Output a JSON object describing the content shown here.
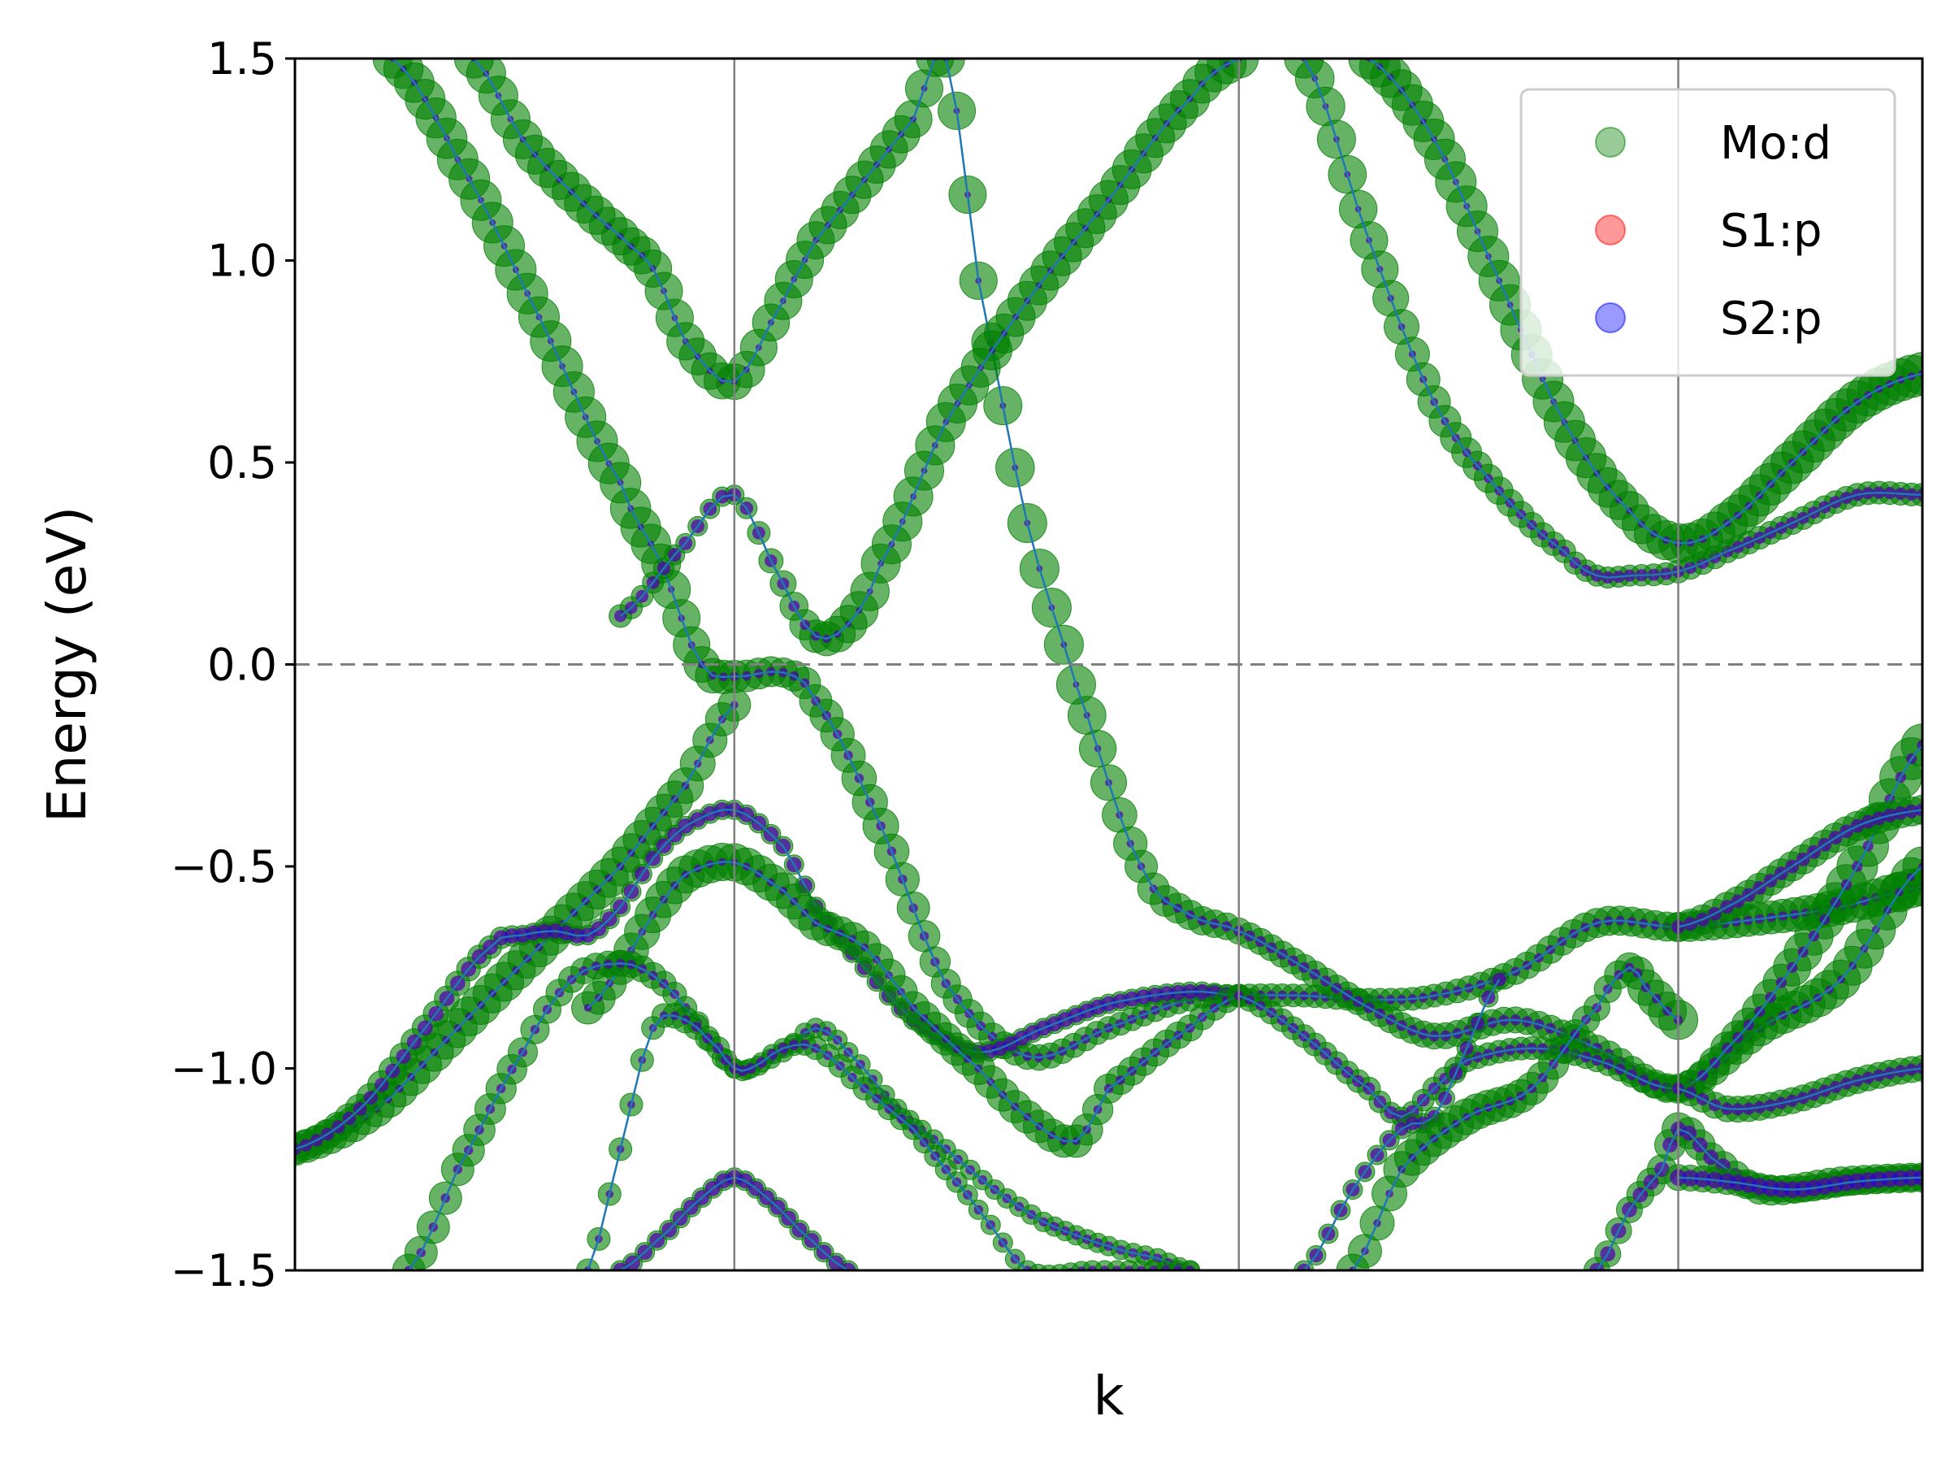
{
  "chart_data": {
    "type": "scatter",
    "title": "",
    "xlabel": "k",
    "ylabel": "Energy (eV)",
    "xlim": [
      0,
      1
    ],
    "ylim": [
      -1.5,
      1.5
    ],
    "yticks": [
      -1.5,
      -1.0,
      -0.5,
      0.0,
      0.5,
      1.0,
      1.5
    ],
    "ytick_labels": [
      "−1.5",
      "−1.0",
      "−0.5",
      "0.0",
      "0.5",
      "1.0",
      "1.5"
    ],
    "kpath_lines": [
      0.27,
      0.58,
      0.85
    ],
    "fermi_level": 0.0,
    "legend": {
      "placement": "top-right",
      "entries": [
        {
          "label": "Mo:d",
          "color": "#008000"
        },
        {
          "label": "S1:p",
          "color": "#ff0000"
        },
        {
          "label": "S2:p",
          "color": "#0000ff"
        }
      ]
    },
    "band_line_color": "#1f77b4",
    "series": [
      {
        "x": [
          0.0,
          0.05,
          0.1,
          0.15,
          0.2,
          0.24,
          0.27
        ],
        "y": [
          -1.2,
          -1.1,
          -0.9,
          -0.7,
          -0.5,
          -0.3,
          -0.1
        ],
        "w_d": [
          0.7,
          0.8,
          0.9,
          0.9,
          0.9,
          0.8,
          0.7
        ],
        "w_p": [
          0.2,
          0.2,
          0.2,
          0.2,
          0.2,
          0.2,
          0.2
        ]
      },
      {
        "x": [
          0.06,
          0.1,
          0.15,
          0.2,
          0.225,
          0.25,
          0.27,
          0.3,
          0.32,
          0.36,
          0.4,
          0.45,
          0.5,
          0.55,
          0.58,
          0.62,
          0.66,
          0.7,
          0.75,
          0.8,
          0.85,
          0.9,
          0.95,
          1.0
        ],
        "y": [
          1.5,
          1.25,
          0.86,
          0.45,
          0.25,
          0.0,
          -0.03,
          -0.02,
          -0.09,
          -0.4,
          -0.79,
          -0.97,
          -0.9,
          -0.83,
          -0.82,
          -0.82,
          -0.83,
          -0.82,
          -0.76,
          -0.64,
          -0.65,
          -0.63,
          -0.6,
          -0.55
        ],
        "w_d": [
          0.9,
          0.95,
          0.95,
          0.95,
          0.9,
          0.8,
          0.7,
          0.6,
          0.7,
          0.8,
          0.6,
          0.5,
          0.4,
          0.4,
          0.4,
          0.4,
          0.4,
          0.4,
          0.5,
          0.6,
          0.6,
          0.7,
          0.8,
          0.9
        ],
        "w_p": [
          0.1,
          0.1,
          0.1,
          0.1,
          0.1,
          0.2,
          0.3,
          0.3,
          0.3,
          0.3,
          0.3,
          0.3,
          0.3,
          0.3,
          0.3,
          0.3,
          0.3,
          0.3,
          0.3,
          0.3,
          0.3,
          0.3,
          0.3,
          0.3
        ]
      },
      {
        "x": [
          0.11,
          0.14,
          0.17,
          0.2,
          0.22,
          0.24,
          0.27,
          0.3,
          0.32,
          0.35,
          0.38,
          0.4,
          0.42,
          0.45,
          0.48,
          0.52,
          0.55,
          0.58,
          0.62,
          0.66,
          0.7,
          0.75,
          0.8,
          0.85,
          0.9,
          0.95,
          1.0
        ],
        "y": [
          1.5,
          1.3,
          1.17,
          1.06,
          0.98,
          0.8,
          0.7,
          0.9,
          1.05,
          1.2,
          1.35,
          1.5,
          0.95,
          0.35,
          -0.05,
          -0.5,
          -0.62,
          -0.66,
          -0.75,
          -0.85,
          -0.92,
          -0.88,
          -0.95,
          -1.05,
          -0.9,
          -0.78,
          -0.5
        ],
        "w_d": [
          0.9,
          0.9,
          0.9,
          0.85,
          0.85,
          0.85,
          0.8,
          0.85,
          0.85,
          0.85,
          0.85,
          0.85,
          0.85,
          0.9,
          0.9,
          0.7,
          0.6,
          0.5,
          0.5,
          0.5,
          0.5,
          0.5,
          0.5,
          0.6,
          0.8,
          0.9,
          0.9
        ],
        "w_p": [
          0.1,
          0.1,
          0.1,
          0.1,
          0.1,
          0.1,
          0.1,
          0.1,
          0.1,
          0.1,
          0.1,
          0.1,
          0.1,
          0.1,
          0.1,
          0.2,
          0.3,
          0.4,
          0.4,
          0.4,
          0.4,
          0.4,
          0.4,
          0.4,
          0.3,
          0.2,
          0.2
        ]
      },
      {
        "x": [
          0.2,
          0.24,
          0.27,
          0.3,
          0.32,
          0.34,
          0.36,
          0.4,
          0.45,
          0.5,
          0.55,
          0.58
        ],
        "y": [
          0.12,
          0.3,
          0.42,
          0.2,
          0.07,
          0.1,
          0.25,
          0.6,
          0.9,
          1.15,
          1.4,
          1.5
        ],
        "w_d": [
          0.4,
          0.3,
          0.3,
          0.5,
          0.7,
          0.85,
          0.9,
          0.9,
          0.9,
          0.9,
          0.9,
          0.9
        ],
        "w_p": [
          0.5,
          0.6,
          0.6,
          0.5,
          0.3,
          0.1,
          0.1,
          0.1,
          0.1,
          0.1,
          0.1,
          0.1
        ]
      },
      {
        "x": [
          0.0,
          0.04,
          0.08,
          0.12,
          0.14,
          0.16,
          0.18,
          0.2,
          0.22,
          0.24,
          0.27,
          0.3,
          0.32,
          0.35,
          0.38,
          0.42,
          0.46,
          0.5,
          0.55,
          0.58
        ],
        "y": [
          -1.2,
          -1.1,
          -0.9,
          -0.7,
          -0.67,
          -0.66,
          -0.67,
          -0.6,
          -0.48,
          -0.4,
          -0.36,
          -0.45,
          -0.6,
          -0.75,
          -0.88,
          -0.96,
          -0.9,
          -0.84,
          -0.81,
          -0.82
        ],
        "w_d": [
          0.6,
          0.6,
          0.5,
          0.4,
          0.3,
          0.3,
          0.3,
          0.3,
          0.3,
          0.3,
          0.3,
          0.3,
          0.3,
          0.3,
          0.3,
          0.3,
          0.3,
          0.3,
          0.3,
          0.3
        ],
        "w_p": [
          0.5,
          0.6,
          0.7,
          0.7,
          0.7,
          0.7,
          0.7,
          0.7,
          0.7,
          0.7,
          0.7,
          0.7,
          0.7,
          0.7,
          0.7,
          0.7,
          0.7,
          0.7,
          0.7,
          0.7
        ]
      },
      {
        "x": [
          0.18,
          0.2,
          0.22,
          0.24,
          0.27,
          0.3,
          0.32,
          0.35,
          0.38,
          0.42,
          0.45,
          0.48,
          0.5,
          0.55,
          0.58
        ],
        "y": [
          -0.85,
          -0.75,
          -0.62,
          -0.52,
          -0.49,
          -0.56,
          -0.64,
          -0.7,
          -0.85,
          -1.0,
          -1.12,
          -1.18,
          -1.05,
          -0.9,
          -0.82
        ],
        "w_d": [
          0.7,
          0.75,
          0.8,
          0.85,
          0.85,
          0.8,
          0.75,
          0.7,
          0.7,
          0.7,
          0.7,
          0.7,
          0.6,
          0.5,
          0.4
        ],
        "w_p": [
          0.2,
          0.2,
          0.2,
          0.2,
          0.2,
          0.2,
          0.2,
          0.2,
          0.2,
          0.2,
          0.2,
          0.2,
          0.3,
          0.3,
          0.3
        ]
      },
      {
        "x": [
          0.07,
          0.1,
          0.14,
          0.17,
          0.2,
          0.22,
          0.24,
          0.27,
          0.3,
          0.32,
          0.34,
          0.37,
          0.4,
          0.43,
          0.46,
          0.5,
          0.53,
          0.55
        ],
        "y": [
          -1.5,
          -1.25,
          -0.96,
          -0.78,
          -0.74,
          -0.77,
          -0.85,
          -1.0,
          -0.96,
          -0.9,
          -0.96,
          -1.1,
          -1.2,
          -1.3,
          -1.38,
          -1.44,
          -1.47,
          -1.5
        ],
        "w_d": [
          0.7,
          0.7,
          0.6,
          0.5,
          0.5,
          0.5,
          0.4,
          0.3,
          0.3,
          0.3,
          0.3,
          0.3,
          0.3,
          0.3,
          0.3,
          0.3,
          0.3,
          0.3
        ],
        "w_p": [
          0.3,
          0.3,
          0.3,
          0.3,
          0.3,
          0.3,
          0.3,
          0.3,
          0.3,
          0.3,
          0.3,
          0.3,
          0.3,
          0.3,
          0.3,
          0.3,
          0.3,
          0.3
        ]
      },
      {
        "x": [
          0.18,
          0.2,
          0.22,
          0.24,
          0.26,
          0.27,
          0.28,
          0.3,
          0.32,
          0.35,
          0.38,
          0.4,
          0.42,
          0.45,
          0.49,
          0.52,
          0.55
        ],
        "y": [
          -1.5,
          -1.2,
          -0.9,
          -0.88,
          -0.95,
          -1.0,
          -1.0,
          -0.95,
          -0.95,
          -1.05,
          -1.15,
          -1.25,
          -1.35,
          -1.5,
          -1.5,
          -1.5,
          -1.5
        ],
        "w_d": [
          0.4,
          0.4,
          0.4,
          0.5,
          0.4,
          0.3,
          0.3,
          0.3,
          0.4,
          0.4,
          0.35,
          0.35,
          0.3,
          0.3,
          0.3,
          0.3,
          0.3
        ],
        "w_p": [
          0.2,
          0.2,
          0.2,
          0.3,
          0.4,
          0.4,
          0.4,
          0.4,
          0.3,
          0.3,
          0.3,
          0.3,
          0.3,
          0.3,
          0.3,
          0.3,
          0.3
        ]
      },
      {
        "x": [
          0.2,
          0.23,
          0.25,
          0.27,
          0.29,
          0.31,
          0.34
        ],
        "y": [
          -1.5,
          -1.4,
          -1.32,
          -1.27,
          -1.32,
          -1.4,
          -1.5
        ],
        "w_d": [
          0.3,
          0.3,
          0.3,
          0.3,
          0.3,
          0.3,
          0.3
        ],
        "w_p": [
          0.7,
          0.7,
          0.7,
          0.7,
          0.7,
          0.7,
          0.7
        ]
      },
      {
        "x": [
          0.62,
          0.66,
          0.7,
          0.74,
          0.78,
          0.8,
          0.82,
          0.85,
          0.88,
          0.92,
          0.96,
          1.0
        ],
        "y": [
          1.5,
          1.05,
          0.65,
          0.43,
          0.28,
          0.22,
          0.22,
          0.23,
          0.28,
          0.35,
          0.42,
          0.42
        ],
        "w_d": [
          0.9,
          0.85,
          0.7,
          0.55,
          0.4,
          0.35,
          0.35,
          0.4,
          0.4,
          0.4,
          0.4,
          0.4
        ],
        "w_p": [
          0.1,
          0.1,
          0.2,
          0.3,
          0.4,
          0.5,
          0.5,
          0.5,
          0.5,
          0.5,
          0.5,
          0.5
        ]
      },
      {
        "x": [
          0.66,
          0.7,
          0.74,
          0.78,
          0.82,
          0.85,
          0.88,
          0.92,
          0.96,
          1.0
        ],
        "y": [
          1.5,
          1.3,
          0.95,
          0.6,
          0.38,
          0.3,
          0.35,
          0.5,
          0.65,
          0.72
        ],
        "w_d": [
          0.95,
          0.95,
          0.95,
          0.95,
          0.9,
          0.9,
          0.95,
          1.0,
          1.0,
          1.0
        ],
        "w_p": [
          0.1,
          0.1,
          0.1,
          0.1,
          0.1,
          0.2,
          0.2,
          0.2,
          0.2,
          0.2
        ]
      },
      {
        "x": [
          0.58,
          0.62,
          0.66,
          0.68,
          0.7,
          0.72,
          0.76,
          0.8,
          0.85,
          0.88,
          0.92,
          0.96,
          1.0
        ],
        "y": [
          -0.82,
          -0.92,
          -1.05,
          -1.12,
          -1.05,
          -0.98,
          -0.95,
          -0.98,
          -1.05,
          -0.95,
          -0.75,
          -0.5,
          -0.2
        ],
        "w_d": [
          0.4,
          0.4,
          0.4,
          0.3,
          0.4,
          0.4,
          0.4,
          0.4,
          0.5,
          0.7,
          0.85,
          0.95,
          1.0
        ],
        "w_p": [
          0.3,
          0.4,
          0.5,
          0.6,
          0.5,
          0.4,
          0.4,
          0.4,
          0.4,
          0.4,
          0.4,
          0.4,
          0.4
        ]
      },
      {
        "x": [
          0.62,
          0.65,
          0.68,
          0.7,
          0.72,
          0.74
        ],
        "y": [
          -1.5,
          -1.3,
          -1.15,
          -1.12,
          -0.95,
          -0.78
        ],
        "w_d": [
          0.3,
          0.3,
          0.3,
          0.3,
          0.3,
          0.3
        ],
        "w_p": [
          0.6,
          0.6,
          0.6,
          0.6,
          0.6,
          0.6
        ]
      },
      {
        "x": [
          0.65,
          0.68,
          0.72,
          0.76,
          0.8,
          0.82,
          0.83,
          0.85
        ],
        "y": [
          -1.5,
          -1.25,
          -1.12,
          -1.05,
          -0.85,
          -0.75,
          -0.8,
          -0.88
        ],
        "w_d": [
          0.7,
          0.8,
          0.8,
          0.7,
          0.5,
          0.6,
          0.8,
          0.9
        ],
        "w_p": [
          0.2,
          0.2,
          0.2,
          0.3,
          0.3,
          0.3,
          0.3,
          0.3
        ]
      },
      {
        "x": [
          0.8,
          0.82,
          0.84,
          0.85,
          0.87,
          0.9,
          0.95,
          1.0
        ],
        "y": [
          -1.5,
          -1.35,
          -1.25,
          -1.15,
          -1.22,
          -1.3,
          -1.28,
          -1.27
        ],
        "w_d": [
          0.5,
          0.5,
          0.6,
          0.7,
          0.6,
          0.6,
          0.6,
          0.6
        ],
        "w_p": [
          0.7,
          0.7,
          0.7,
          0.7,
          0.7,
          0.7,
          0.7,
          0.7
        ]
      },
      {
        "x": [
          0.85,
          0.88,
          0.92,
          0.96,
          1.0
        ],
        "y": [
          -1.27,
          -1.28,
          -1.3,
          -1.28,
          -1.27
        ],
        "w_d": [
          0.5,
          0.5,
          0.5,
          0.5,
          0.5
        ],
        "w_p": [
          0.8,
          0.8,
          0.8,
          0.8,
          0.8
        ]
      },
      {
        "x": [
          0.85,
          0.88,
          0.92,
          0.96,
          1.0
        ],
        "y": [
          -1.05,
          -1.1,
          -1.08,
          -1.03,
          -1.0
        ],
        "w_d": [
          0.5,
          0.5,
          0.5,
          0.5,
          0.5
        ],
        "w_p": [
          0.5,
          0.5,
          0.5,
          0.5,
          0.5
        ]
      },
      {
        "x": [
          0.85,
          0.88,
          0.92,
          0.96,
          1.0
        ],
        "y": [
          -0.65,
          -0.6,
          -0.5,
          -0.4,
          -0.36
        ],
        "w_d": [
          0.6,
          0.6,
          0.6,
          0.6,
          0.6
        ],
        "w_p": [
          0.6,
          0.6,
          0.6,
          0.6,
          0.6
        ]
      }
    ]
  }
}
